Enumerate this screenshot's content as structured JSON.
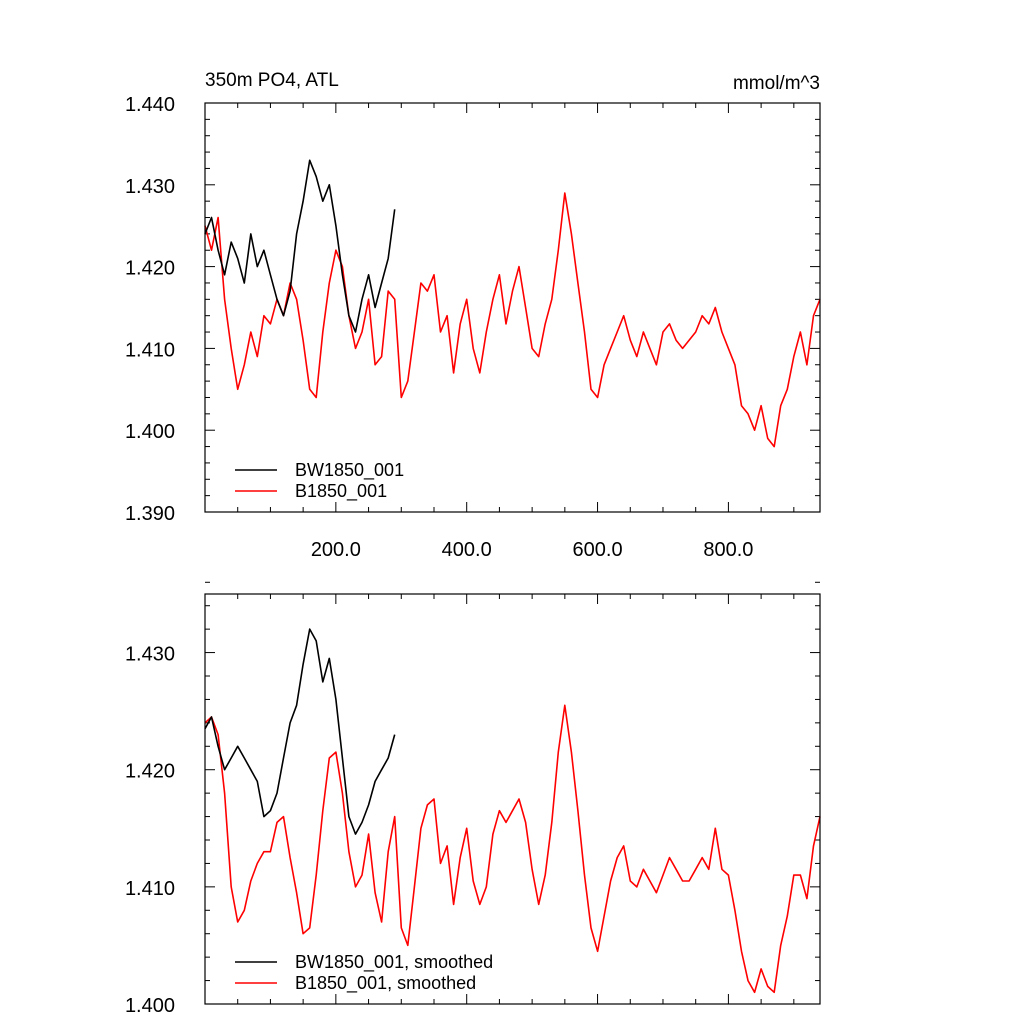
{
  "chart_data": [
    {
      "type": "line",
      "title": "350m PO4, ATL",
      "units": "mmol/m^3",
      "xlim": [
        0,
        940
      ],
      "ylim": [
        1.39,
        1.44
      ],
      "x_ticks": [
        200,
        400,
        600,
        800
      ],
      "x_tick_labels": [
        "200.0",
        "400.0",
        "600.0",
        "800.0"
      ],
      "y_ticks": [
        1.39,
        1.4,
        1.41,
        1.42,
        1.43,
        1.44
      ],
      "y_tick_labels": [
        "1.390",
        "1.400",
        "1.410",
        "1.420",
        "1.430",
        "1.440"
      ],
      "legend_position": "bottom-left",
      "series": [
        {
          "name": "BW1850_001",
          "color": "#000000",
          "x": [
            0,
            10,
            20,
            30,
            40,
            50,
            60,
            70,
            80,
            90,
            100,
            110,
            120,
            130,
            140,
            150,
            160,
            170,
            180,
            190,
            200,
            210,
            220,
            230,
            240,
            250,
            260,
            270,
            280,
            290
          ],
          "y": [
            1.424,
            1.426,
            1.422,
            1.419,
            1.423,
            1.421,
            1.418,
            1.424,
            1.42,
            1.422,
            1.419,
            1.416,
            1.414,
            1.417,
            1.424,
            1.428,
            1.433,
            1.431,
            1.428,
            1.43,
            1.425,
            1.419,
            1.414,
            1.412,
            1.416,
            1.419,
            1.415,
            1.418,
            1.421,
            1.427
          ]
        },
        {
          "name": "B1850_001",
          "color": "#ff0000",
          "x": [
            0,
            10,
            20,
            30,
            40,
            50,
            60,
            70,
            80,
            90,
            100,
            110,
            120,
            130,
            140,
            150,
            160,
            170,
            180,
            190,
            200,
            210,
            220,
            230,
            240,
            250,
            260,
            270,
            280,
            290,
            300,
            310,
            320,
            330,
            340,
            350,
            360,
            370,
            380,
            390,
            400,
            410,
            420,
            430,
            440,
            450,
            460,
            470,
            480,
            490,
            500,
            510,
            520,
            530,
            540,
            550,
            560,
            570,
            580,
            590,
            600,
            610,
            620,
            630,
            640,
            650,
            660,
            670,
            680,
            690,
            700,
            710,
            720,
            730,
            740,
            750,
            760,
            770,
            780,
            790,
            800,
            810,
            820,
            830,
            840,
            850,
            860,
            870,
            880,
            890,
            900,
            910,
            920,
            930,
            940
          ],
          "y": [
            1.425,
            1.422,
            1.426,
            1.416,
            1.41,
            1.405,
            1.408,
            1.412,
            1.409,
            1.414,
            1.413,
            1.416,
            1.414,
            1.418,
            1.416,
            1.411,
            1.405,
            1.404,
            1.412,
            1.418,
            1.422,
            1.42,
            1.414,
            1.41,
            1.412,
            1.416,
            1.408,
            1.409,
            1.417,
            1.416,
            1.404,
            1.406,
            1.412,
            1.418,
            1.417,
            1.419,
            1.412,
            1.414,
            1.407,
            1.413,
            1.416,
            1.41,
            1.407,
            1.412,
            1.416,
            1.419,
            1.413,
            1.417,
            1.42,
            1.415,
            1.41,
            1.409,
            1.413,
            1.416,
            1.422,
            1.429,
            1.424,
            1.418,
            1.412,
            1.405,
            1.404,
            1.408,
            1.41,
            1.412,
            1.414,
            1.411,
            1.409,
            1.412,
            1.41,
            1.408,
            1.412,
            1.413,
            1.411,
            1.41,
            1.411,
            1.412,
            1.414,
            1.413,
            1.415,
            1.412,
            1.41,
            1.408,
            1.403,
            1.402,
            1.4,
            1.403,
            1.399,
            1.398,
            1.403,
            1.405,
            1.409,
            1.412,
            1.408,
            1.414,
            1.416
          ]
        }
      ]
    },
    {
      "type": "line",
      "xlim": [
        0,
        940
      ],
      "ylim": [
        1.4,
        1.435
      ],
      "y_ticks": [
        1.4,
        1.41,
        1.42,
        1.43
      ],
      "y_tick_labels": [
        "1.400",
        "1.410",
        "1.420",
        "1.430"
      ],
      "legend_position": "bottom-left",
      "series": [
        {
          "name": "BW1850_001, smoothed",
          "color": "#000000",
          "x": [
            0,
            10,
            20,
            30,
            40,
            50,
            60,
            70,
            80,
            90,
            100,
            110,
            120,
            130,
            140,
            150,
            160,
            170,
            180,
            190,
            200,
            210,
            220,
            230,
            240,
            250,
            260,
            270,
            280,
            290
          ],
          "y": [
            1.4235,
            1.4245,
            1.422,
            1.42,
            1.421,
            1.422,
            1.421,
            1.42,
            1.419,
            1.416,
            1.4165,
            1.418,
            1.421,
            1.424,
            1.4255,
            1.429,
            1.432,
            1.431,
            1.4275,
            1.4295,
            1.426,
            1.421,
            1.416,
            1.4145,
            1.4155,
            1.417,
            1.419,
            1.42,
            1.421,
            1.423
          ]
        },
        {
          "name": "B1850_001, smoothed",
          "color": "#ff0000",
          "x": [
            0,
            10,
            20,
            30,
            40,
            50,
            60,
            70,
            80,
            90,
            100,
            110,
            120,
            130,
            140,
            150,
            160,
            170,
            180,
            190,
            200,
            210,
            220,
            230,
            240,
            250,
            260,
            270,
            280,
            290,
            300,
            310,
            320,
            330,
            340,
            350,
            360,
            370,
            380,
            390,
            400,
            410,
            420,
            430,
            440,
            450,
            460,
            470,
            480,
            490,
            500,
            510,
            520,
            530,
            540,
            550,
            560,
            570,
            580,
            590,
            600,
            610,
            620,
            630,
            640,
            650,
            660,
            670,
            680,
            690,
            700,
            710,
            720,
            730,
            740,
            750,
            760,
            770,
            780,
            790,
            800,
            810,
            820,
            830,
            840,
            850,
            860,
            870,
            880,
            890,
            900,
            910,
            920,
            930,
            940
          ],
          "y": [
            1.424,
            1.4245,
            1.423,
            1.418,
            1.41,
            1.407,
            1.408,
            1.4105,
            1.412,
            1.413,
            1.413,
            1.4155,
            1.416,
            1.4125,
            1.4095,
            1.406,
            1.4065,
            1.411,
            1.4165,
            1.421,
            1.4215,
            1.418,
            1.413,
            1.41,
            1.411,
            1.4145,
            1.4095,
            1.407,
            1.413,
            1.416,
            1.4065,
            1.405,
            1.41,
            1.415,
            1.417,
            1.4175,
            1.412,
            1.4135,
            1.4085,
            1.4125,
            1.415,
            1.4105,
            1.4085,
            1.41,
            1.4145,
            1.4165,
            1.4155,
            1.4165,
            1.4175,
            1.4155,
            1.4115,
            1.4085,
            1.411,
            1.4155,
            1.4215,
            1.4255,
            1.4215,
            1.4165,
            1.411,
            1.4065,
            1.4045,
            1.4075,
            1.4105,
            1.4125,
            1.4135,
            1.4105,
            1.41,
            1.4115,
            1.4105,
            1.4095,
            1.411,
            1.4125,
            1.4115,
            1.4105,
            1.4105,
            1.4115,
            1.4125,
            1.4115,
            1.415,
            1.4115,
            1.411,
            1.408,
            1.4045,
            1.402,
            1.401,
            1.403,
            1.4015,
            1.401,
            1.405,
            1.4075,
            1.411,
            1.411,
            1.409,
            1.4135,
            1.416
          ]
        }
      ]
    }
  ]
}
